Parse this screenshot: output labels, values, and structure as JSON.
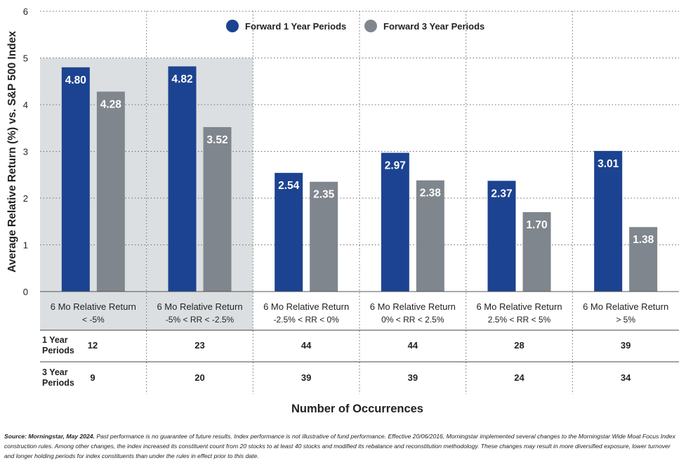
{
  "chart_data": {
    "type": "bar",
    "ylabel": "Average Relative Return (%) vs. S&P 500 Index",
    "xlabel": "Number of Occurrences",
    "ylim": [
      0,
      6
    ],
    "yticks": [
      "0",
      "1",
      "2",
      "3",
      "4",
      "5",
      "6"
    ],
    "grid": "dotted",
    "legend_position": "top",
    "highlighted_groups": [
      0,
      1
    ],
    "categories": [
      [
        "6 Mo Relative Return",
        "< -5%"
      ],
      [
        "6 Mo Relative Return",
        "-5% < RR < -2.5%"
      ],
      [
        "6 Mo Relative Return",
        "-2.5% < RR < 0%"
      ],
      [
        "6 Mo Relative Return",
        "0% < RR < 2.5%"
      ],
      [
        "6 Mo Relative Return",
        "2.5% < RR < 5%"
      ],
      [
        "6 Mo Relative Return",
        "> 5%"
      ]
    ],
    "series": [
      {
        "name": "Forward 1 Year Periods",
        "color": "#1c4391",
        "values": [
          4.8,
          4.82,
          2.54,
          2.97,
          2.37,
          3.01
        ],
        "labels": [
          "4.80",
          "4.82",
          "2.54",
          "2.97",
          "2.37",
          "3.01"
        ]
      },
      {
        "name": "Forward 3 Year Periods",
        "color": "#80868d",
        "values": [
          4.28,
          3.52,
          2.35,
          2.38,
          1.7,
          1.38
        ],
        "labels": [
          "4.28",
          "3.52",
          "2.35",
          "2.38",
          "1.70",
          "1.38"
        ]
      }
    ],
    "table": {
      "rows": [
        {
          "label": [
            "1 Year",
            "Periods"
          ],
          "values": [
            "12",
            "23",
            "44",
            "44",
            "28",
            "39"
          ]
        },
        {
          "label": [
            "3 Year",
            "Periods"
          ],
          "values": [
            "9",
            "20",
            "39",
            "39",
            "24",
            "34"
          ]
        }
      ]
    }
  },
  "footnote": {
    "source_label": "Source: Morningstar, May 2024.",
    "text": " Past performance is no guarantee of future results. Index performance is not illustrative of fund performance. Effective 20/06/2016, Morningstar implemented several changes to the Morningstar Wide Moat Focus Index construction rules. Among other changes, the index increased its constituent count from 20 stocks to at least 40 stocks and modified its rebalance and reconstitution methodology. These changes may result in more diversified exposure, lower turnover and longer holding periods for index constituents than under the rules in effect prior to this date."
  }
}
